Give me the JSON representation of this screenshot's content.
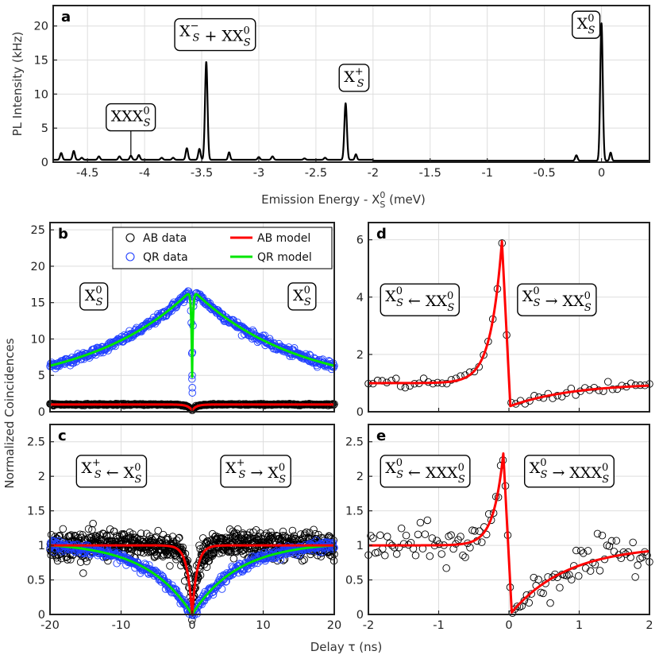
{
  "figure": {
    "ylabel_shared": "Normalized Coincidences",
    "xlabel_shared": "Delay τ (ns)"
  },
  "chart_data": [
    {
      "id": "a",
      "panel_label": "a",
      "type": "line",
      "xlabel_main": "Emission Energy - X",
      "xlabel_sup": "0",
      "xlabel_sub": "S",
      "xlabel_unit": " (meV)",
      "ylabel": "PL Intensity (kHz)",
      "xlim": [
        -4.8,
        0.42
      ],
      "ylim": [
        0,
        23
      ],
      "xticks": [
        -4.5,
        -4,
        -3.5,
        -3,
        -2.5,
        -2,
        -1.5,
        -1,
        -0.5,
        0
      ],
      "xtick_labels": [
        "-4.5",
        "-4",
        "-3.5",
        "-3",
        "-2.5",
        "-2",
        "-1.5",
        "-1",
        "-0.5",
        "0"
      ],
      "yticks": [
        0,
        5,
        10,
        15,
        20
      ],
      "ytick_labels": [
        "0",
        "5",
        "10",
        "15",
        "20"
      ],
      "grid": true,
      "baseline": 0.35,
      "peaks": [
        {
          "x": -4.73,
          "h": 1.0,
          "w": 0.01
        },
        {
          "x": -4.62,
          "h": 1.3,
          "w": 0.01
        },
        {
          "x": -4.55,
          "h": 0.3,
          "w": 0.01
        },
        {
          "x": -4.4,
          "h": 0.5,
          "w": 0.01
        },
        {
          "x": -4.22,
          "h": 0.5,
          "w": 0.01
        },
        {
          "x": -4.12,
          "h": 0.6,
          "w": 0.01
        },
        {
          "x": -4.05,
          "h": 0.7,
          "w": 0.01
        },
        {
          "x": -3.85,
          "h": 0.3,
          "w": 0.01
        },
        {
          "x": -3.75,
          "h": 0.3,
          "w": 0.01
        },
        {
          "x": -3.63,
          "h": 1.7,
          "w": 0.01
        },
        {
          "x": -3.52,
          "h": 1.6,
          "w": 0.01
        },
        {
          "x": -3.46,
          "h": 14.4,
          "w": 0.011
        },
        {
          "x": -3.26,
          "h": 1.1,
          "w": 0.009
        },
        {
          "x": -3.0,
          "h": 0.4,
          "w": 0.01
        },
        {
          "x": -2.88,
          "h": 0.5,
          "w": 0.01
        },
        {
          "x": -2.6,
          "h": 0.2,
          "w": 0.01
        },
        {
          "x": -2.42,
          "h": 0.3,
          "w": 0.01
        },
        {
          "x": -2.24,
          "h": 8.3,
          "w": 0.011
        },
        {
          "x": -2.15,
          "h": 0.8,
          "w": 0.009
        },
        {
          "x": -0.22,
          "h": 0.8,
          "w": 0.01
        },
        {
          "x": 0.0,
          "h": 20.2,
          "w": 0.011
        },
        {
          "x": 0.08,
          "h": 1.2,
          "w": 0.009
        }
      ],
      "annotations": [
        {
          "main": "XXX",
          "sup": "0",
          "sub": "S",
          "rest": "",
          "x": -4.35,
          "y": 6.0,
          "arrow_to": [
            -4.12,
            1.0
          ]
        },
        {
          "main": "X",
          "sup": "−",
          "sub": "S",
          "rest": " + XX",
          "rest_sup": "0",
          "rest_sub": "S",
          "x": -3.75,
          "y": 18.5
        },
        {
          "main": "X",
          "sup": "+",
          "sub": "S",
          "rest": "",
          "x": -2.31,
          "y": 11.8
        },
        {
          "main": "X",
          "sup": "0",
          "sub": "S",
          "rest": "",
          "x": -0.27,
          "y": 19.6
        }
      ]
    },
    {
      "id": "b",
      "panel_label": "b",
      "type": "scatter",
      "xlim": [
        -20,
        20
      ],
      "ylim": [
        0,
        26
      ],
      "yticks": [
        0,
        5,
        10,
        15,
        20,
        25
      ],
      "ytick_labels": [
        "0",
        "5",
        "10",
        "15",
        "20",
        "25"
      ],
      "xticks": [
        -20,
        -10,
        0,
        10,
        20
      ],
      "grid": true,
      "legend": {
        "position": "top-right",
        "entries": [
          {
            "label": "AB data",
            "color": "#000000",
            "kind": "marker"
          },
          {
            "label": "AB model",
            "color": "#ff0000",
            "kind": "line"
          },
          {
            "label": "QR data",
            "color": "#1f3fff",
            "kind": "marker"
          },
          {
            "label": "QR model",
            "color": "#00e600",
            "kind": "line"
          }
        ]
      },
      "series": [
        {
          "name": "QR model",
          "color": "#00e600",
          "model": "qr_b",
          "peak": 16.8,
          "tau": 14.5,
          "floor": 2.8,
          "dip": 12.0,
          "dipw": 0.12
        },
        {
          "name": "AB model",
          "color": "#ff0000",
          "model": "ab_b",
          "level": 1.0,
          "dip": 0.8,
          "dipw": 0.6
        }
      ],
      "annotations": [
        {
          "main": "X",
          "sup": "0",
          "sub": "S",
          "x": -16.0,
          "y": 15.3
        },
        {
          "main": "X",
          "sup": "0",
          "sub": "S",
          "x": 13.3,
          "y": 15.3
        }
      ]
    },
    {
      "id": "c",
      "panel_label": "c",
      "type": "scatter",
      "xlim": [
        -20,
        20
      ],
      "ylim": [
        0,
        2.75
      ],
      "yticks": [
        0,
        0.5,
        1,
        1.5,
        2,
        2.5
      ],
      "ytick_labels": [
        "0",
        "0.5",
        "1",
        "1.5",
        "2",
        "2.5"
      ],
      "xticks": [
        -20,
        -10,
        0,
        10,
        20
      ],
      "xtick_labels": [
        "-20",
        "-10",
        "0",
        "10",
        "20"
      ],
      "grid": true,
      "series": [
        {
          "name": "AB model",
          "color": "#ff0000",
          "model": "ab_c",
          "level": 1.0,
          "tau": 0.7
        },
        {
          "name": "QR model",
          "color": "#00e600",
          "model": "qr_c",
          "level": 1.05,
          "tau": 6.5
        }
      ],
      "annotations": [
        {
          "main": "X",
          "sup": "+",
          "sub": "S",
          "rest": " ← X",
          "rest_sup": "0",
          "rest_sub": "S",
          "x": -16.5,
          "y": 2.05
        },
        {
          "main": "X",
          "sup": "+",
          "sub": "S",
          "rest": " → X",
          "rest_sup": "0",
          "rest_sub": "S",
          "x": 3.8,
          "y": 2.05
        }
      ]
    },
    {
      "id": "d",
      "panel_label": "d",
      "type": "scatter",
      "xlim": [
        -2,
        2
      ],
      "ylim": [
        0,
        6.6
      ],
      "yticks": [
        0,
        2,
        4,
        6
      ],
      "ytick_labels": [
        "0",
        "2",
        "4",
        "6"
      ],
      "xticks": [
        -2,
        -1,
        0,
        1,
        2
      ],
      "grid": true,
      "series": [
        {
          "name": "AB model",
          "color": "#ff0000",
          "model": "bunch",
          "level": 1.0,
          "peak": 5.95,
          "t0": -0.1,
          "taul": 0.16,
          "taur": 0.9,
          "low": 0.2
        }
      ],
      "annotations": [
        {
          "main": "X",
          "sup": "0",
          "sub": "S",
          "rest": " ← XX",
          "rest_sup": "0",
          "rest_sub": "S",
          "x": -1.85,
          "y": 3.85
        },
        {
          "main": "X",
          "sup": "0",
          "sub": "S",
          "rest": " → XX",
          "rest_sup": "0",
          "rest_sub": "S",
          "x": 0.1,
          "y": 3.85
        }
      ]
    },
    {
      "id": "e",
      "panel_label": "e",
      "type": "scatter",
      "xlim": [
        -2,
        2
      ],
      "ylim": [
        0,
        2.75
      ],
      "yticks": [
        0,
        0.5,
        1,
        1.5,
        2,
        2.5
      ],
      "ytick_labels": [
        "0",
        "0.5",
        "1",
        "1.5",
        "2",
        "2.5"
      ],
      "xticks": [
        -2,
        -1,
        0,
        1,
        2
      ],
      "xtick_labels": [
        "-2",
        "-1",
        "0",
        "1",
        "2"
      ],
      "grid": true,
      "series": [
        {
          "name": "AB model",
          "color": "#ff0000",
          "model": "bunch",
          "level": 1.0,
          "peak": 2.33,
          "t0": -0.08,
          "taul": 0.14,
          "taur": 0.8,
          "low": 0.03
        }
      ],
      "annotations": [
        {
          "main": "X",
          "sup": "0",
          "sub": "S",
          "rest": " ← XXX",
          "rest_sup": "0",
          "rest_sub": "S",
          "x": -1.85,
          "y": 2.05
        },
        {
          "main": "X",
          "sup": "0",
          "sub": "S",
          "rest": " → XXX",
          "rest_sup": "0",
          "rest_sub": "S",
          "x": 0.2,
          "y": 2.05
        }
      ]
    }
  ]
}
